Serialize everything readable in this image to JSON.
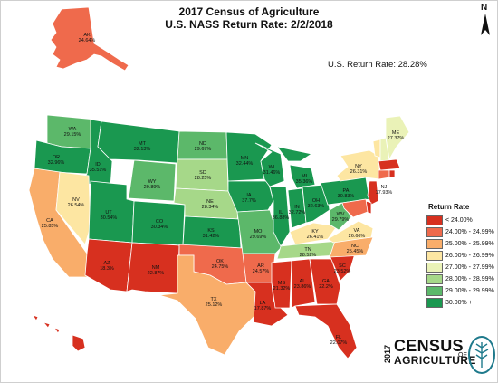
{
  "header": {
    "title_line1": "2017 Census of Agriculture",
    "title_line2": "U.S. NASS Return Rate: 2/2/2018"
  },
  "overall": {
    "label": "U.S. Return Rate: 28.28%",
    "value_pct": 28.28
  },
  "compass": {
    "letter": "N",
    "icon": "north-arrow-icon"
  },
  "legend": {
    "title": "Return Rate",
    "items": [
      {
        "label": "< 24.00%",
        "color": "#d7301f"
      },
      {
        "label": "24.00% - 24.99%",
        "color": "#ef6a4c"
      },
      {
        "label": "25.00% - 25.99%",
        "color": "#f9ad6a"
      },
      {
        "label": "26.00% - 26.99%",
        "color": "#fde6a2"
      },
      {
        "label": "27.00% - 27.99%",
        "color": "#eaf2b7"
      },
      {
        "label": "28.00% - 28.99%",
        "color": "#a6d889"
      },
      {
        "label": "29.00% - 29.99%",
        "color": "#5cb86a"
      },
      {
        "label": "30.00% +",
        "color": "#1a9850"
      }
    ]
  },
  "states": [
    {
      "code": "AK",
      "label": "24.64%",
      "value": 24.64
    },
    {
      "code": "WA",
      "label": "29.15%",
      "value": 29.15
    },
    {
      "code": "OR",
      "label": "32.96%",
      "value": 32.96
    },
    {
      "code": "CA",
      "label": "25.85%",
      "value": 25.85
    },
    {
      "code": "ID",
      "label": "35.51%",
      "value": 35.51
    },
    {
      "code": "NV",
      "label": "26.54%",
      "value": 26.54
    },
    {
      "code": "MT",
      "label": "32.13%",
      "value": 32.13
    },
    {
      "code": "WY",
      "label": "29.89%",
      "value": 29.89
    },
    {
      "code": "UT",
      "label": "30.54%",
      "value": 30.54
    },
    {
      "code": "AZ",
      "label": "18.3%",
      "value": 18.3
    },
    {
      "code": "CO",
      "label": "30.34%",
      "value": 30.34
    },
    {
      "code": "NM",
      "label": "22.87%",
      "value": 22.87
    },
    {
      "code": "ND",
      "label": "29.67%",
      "value": 29.67
    },
    {
      "code": "SD",
      "label": "28.25%",
      "value": 28.25
    },
    {
      "code": "NE",
      "label": "28.34%",
      "value": 28.34
    },
    {
      "code": "KS",
      "label": "31.42%",
      "value": 31.42
    },
    {
      "code": "OK",
      "label": "24.75%",
      "value": 24.75
    },
    {
      "code": "TX",
      "label": "25.12%",
      "value": 25.12
    },
    {
      "code": "MN",
      "label": "32.44%",
      "value": 32.44
    },
    {
      "code": "IA",
      "label": "37.7%",
      "value": 37.7
    },
    {
      "code": "MO",
      "label": "29.69%",
      "value": 29.69
    },
    {
      "code": "AR",
      "label": "24.57%",
      "value": 24.57
    },
    {
      "code": "LA",
      "label": "17.87%",
      "value": 17.87
    },
    {
      "code": "WI",
      "label": "31.46%",
      "value": 31.46
    },
    {
      "code": "IL",
      "label": "36.88%",
      "value": 36.88
    },
    {
      "code": "MI",
      "label": "35.36%",
      "value": 35.36
    },
    {
      "code": "IN",
      "label": "32.72%",
      "value": 32.72
    },
    {
      "code": "OH",
      "label": "32.63%",
      "value": 32.63
    },
    {
      "code": "KY",
      "label": "26.41%",
      "value": 26.41
    },
    {
      "code": "TN",
      "label": "28.52%",
      "value": 28.52
    },
    {
      "code": "MS",
      "label": "21.32%",
      "value": 21.32
    },
    {
      "code": "AL",
      "label": "23.86%",
      "value": 23.86
    },
    {
      "code": "GA",
      "label": "22.2%",
      "value": 22.2
    },
    {
      "code": "FL",
      "label": "22.07%",
      "value": 22.07
    },
    {
      "code": "SC",
      "label": "23.52%",
      "value": 23.52
    },
    {
      "code": "NC",
      "label": "25.45%",
      "value": 25.45
    },
    {
      "code": "VA",
      "label": "26.66%",
      "value": 26.66
    },
    {
      "code": "WV",
      "label": "29.79%",
      "value": 29.79
    },
    {
      "code": "PA",
      "label": "30.83%",
      "value": 30.83
    },
    {
      "code": "NY",
      "label": "26.31%",
      "value": 26.31
    },
    {
      "code": "ME",
      "label": "27.37%",
      "value": 27.37
    },
    {
      "code": "VT",
      "label": "",
      "value": null
    },
    {
      "code": "NH",
      "label": "",
      "value": null
    },
    {
      "code": "MA",
      "label": "",
      "value": null
    },
    {
      "code": "CT",
      "label": "",
      "value": null
    },
    {
      "code": "RI",
      "label": "",
      "value": null
    },
    {
      "code": "NJ",
      "label": "17.93%",
      "value": 17.93
    },
    {
      "code": "DE",
      "label": "",
      "value": null
    },
    {
      "code": "MD",
      "label": "",
      "value": null
    },
    {
      "code": "HI",
      "label": "",
      "value": null
    }
  ],
  "logo": {
    "year": "2017",
    "line1": "CENSUS",
    "line2": "OF",
    "line3": "AGRICULTURE",
    "seal_text": "AGRICULTURE COUNTS"
  }
}
